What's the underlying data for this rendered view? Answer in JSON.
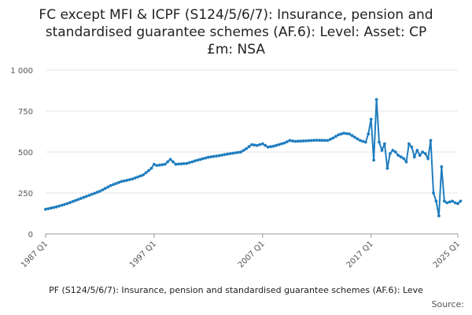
{
  "chart_data": {
    "type": "line",
    "title_lines": [
      "FC except MFI & ICPF (S124/5/6/7): Insurance, pension and",
      "standardised guarantee schemes (AF.6): Level: Asset: CP",
      "£m: NSA"
    ],
    "footer_text": "PF (S124/5/6/7): Insurance, pension and standardised guarantee schemes (AF.6): Leve",
    "source_text": "Source:",
    "series_color": "#1f7dbf",
    "ylim": [
      0,
      1000
    ],
    "y_ticks": [
      0,
      250,
      500,
      750,
      1000
    ],
    "y_tick_labels": [
      "0",
      "250",
      "500",
      "750",
      "1 000"
    ],
    "grid": true,
    "x_tick_labels": [
      {
        "label": "1987 Q1",
        "t": 1987.0
      },
      {
        "label": "1997 Q1",
        "t": 1997.0
      },
      {
        "label": "2007 Q1",
        "t": 2007.0
      },
      {
        "label": "2017 Q1",
        "t": 2017.0
      },
      {
        "label": "2025 Q1",
        "t": 2025.0
      }
    ],
    "x_range": [
      1987.0,
      2025.0
    ],
    "anchors": [
      [
        1987.0,
        150
      ],
      [
        1988.0,
        165
      ],
      [
        1989.0,
        185
      ],
      [
        1990.0,
        210
      ],
      [
        1991.0,
        235
      ],
      [
        1992.0,
        260
      ],
      [
        1993.0,
        295
      ],
      [
        1994.0,
        320
      ],
      [
        1995.0,
        335
      ],
      [
        1996.0,
        360
      ],
      [
        1996.75,
        400
      ],
      [
        1997.0,
        425
      ],
      [
        1997.25,
        418
      ],
      [
        1998.0,
        425
      ],
      [
        1998.5,
        455
      ],
      [
        1999.0,
        425
      ],
      [
        2000.0,
        430
      ],
      [
        2001.0,
        450
      ],
      [
        2002.0,
        468
      ],
      [
        2003.0,
        478
      ],
      [
        2004.0,
        490
      ],
      [
        2005.0,
        500
      ],
      [
        2005.5,
        520
      ],
      [
        2006.0,
        545
      ],
      [
        2006.5,
        540
      ],
      [
        2007.0,
        550
      ],
      [
        2007.5,
        530
      ],
      [
        2008.0,
        535
      ],
      [
        2009.0,
        555
      ],
      [
        2009.5,
        570
      ],
      [
        2010.0,
        565
      ],
      [
        2011.0,
        568
      ],
      [
        2012.0,
        572
      ],
      [
        2013.0,
        570
      ],
      [
        2013.5,
        585
      ],
      [
        2014.0,
        605
      ],
      [
        2014.5,
        615
      ],
      [
        2015.0,
        610
      ],
      [
        2015.5,
        590
      ],
      [
        2016.0,
        570
      ],
      [
        2016.5,
        560
      ],
      [
        2016.75,
        610
      ],
      [
        2017.0,
        700
      ],
      [
        2017.25,
        450
      ]
    ],
    "tail_values": [
      820,
      560,
      510,
      550,
      400,
      490,
      510,
      500,
      480,
      470,
      460,
      440,
      550,
      530,
      470,
      510,
      480,
      500,
      490,
      460,
      570,
      250,
      200,
      110,
      410,
      200,
      190,
      195,
      200,
      190,
      185,
      200
    ]
  }
}
